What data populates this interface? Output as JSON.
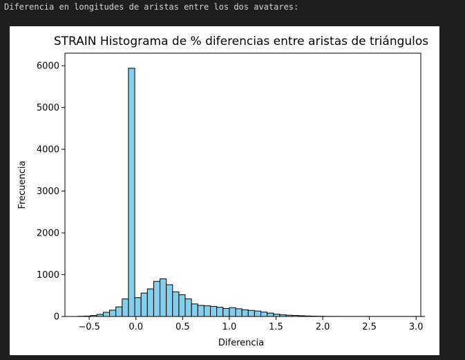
{
  "output": {
    "console_text": "Diferencia en longitudes de aristas entre los dos avatares:"
  },
  "chart_data": {
    "type": "bar",
    "title": "STRAIN Histograma de % diferencias entre aristas de triángulos",
    "xlabel": "Diferencia",
    "ylabel": "Frecuencia",
    "xlim": [
      -0.76,
      3.05
    ],
    "ylim": [
      0,
      6300
    ],
    "xticks": [
      -0.5,
      0.0,
      0.5,
      1.0,
      1.5,
      2.0,
      2.5,
      3.0
    ],
    "xtick_labels": [
      "−0.5",
      "0.0",
      "0.5",
      "1.0",
      "1.5",
      "2.0",
      "2.5",
      "3.0"
    ],
    "yticks": [
      0,
      1000,
      2000,
      3000,
      4000,
      5000,
      6000
    ],
    "ytick_labels": [
      "0",
      "1000",
      "2000",
      "3000",
      "4000",
      "5000",
      "6000"
    ],
    "bin_width": 0.0675,
    "bins_start": -0.62,
    "bar_color": "#87ceeb",
    "edge_color": "#000000",
    "values": [
      5,
      10,
      25,
      50,
      100,
      150,
      230,
      420,
      5940,
      450,
      560,
      660,
      840,
      900,
      760,
      590,
      520,
      420,
      300,
      265,
      255,
      240,
      220,
      190,
      210,
      185,
      160,
      145,
      130,
      105,
      80,
      55,
      40,
      30,
      25,
      18,
      12,
      8,
      5,
      3,
      2,
      2,
      1,
      1,
      1,
      1,
      1,
      1,
      1,
      1,
      1,
      1,
      1,
      1,
      1
    ]
  }
}
